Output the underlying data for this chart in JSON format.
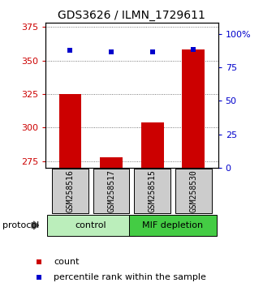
{
  "title": "GDS3626 / ILMN_1729611",
  "samples": [
    "GSM258516",
    "GSM258517",
    "GSM258515",
    "GSM258530"
  ],
  "bar_values": [
    325.0,
    278.0,
    304.0,
    358.0
  ],
  "percentile_values": [
    87.5,
    86.5,
    86.5,
    88.5
  ],
  "ylim_left": [
    270,
    378
  ],
  "ylim_right": [
    0,
    108
  ],
  "yticks_left": [
    275,
    300,
    325,
    350,
    375
  ],
  "yticks_right": [
    0,
    25,
    50,
    75,
    100
  ],
  "bar_color": "#cc0000",
  "dot_color": "#0000cc",
  "bar_bottom": 270,
  "groups": [
    {
      "label": "control",
      "color": "#bbeebb"
    },
    {
      "label": "MIF depletion",
      "color": "#44cc44"
    }
  ],
  "protocol_label": "protocol",
  "legend_bar_label": "count",
  "legend_dot_label": "percentile rank within the sample",
  "grid_color": "#555555",
  "sample_box_color": "#cccccc",
  "bg_color": "#ffffff",
  "title_fontsize": 10,
  "tick_fontsize": 8,
  "legend_fontsize": 8
}
